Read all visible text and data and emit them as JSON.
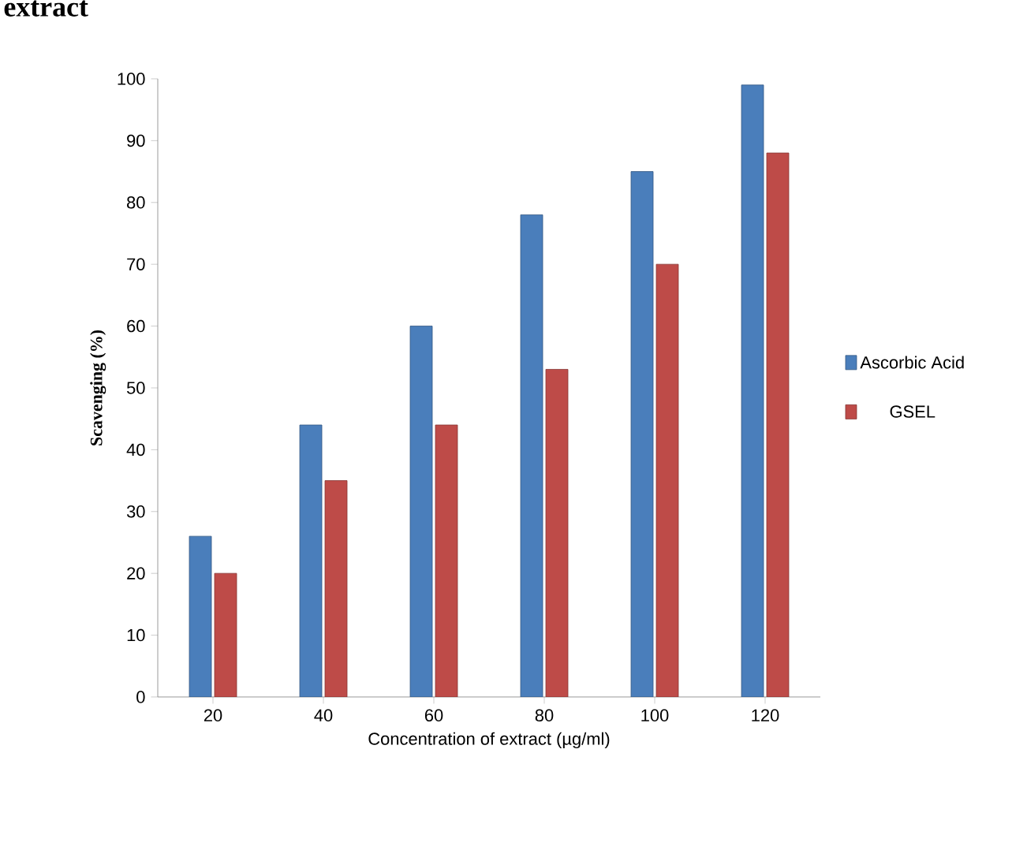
{
  "chart_data": {
    "type": "bar",
    "xlabel": "Concentration of extract (µg/ml)",
    "ylabel": "Scavenging  (%)",
    "annotations": [
      "extract"
    ],
    "categories": [
      "20",
      "40",
      "60",
      "80",
      "100",
      "120"
    ],
    "series": [
      {
        "name": "Ascorbic Acid",
        "color": "#4a7ebb",
        "values": [
          26,
          44,
          60,
          78,
          85,
          99
        ]
      },
      {
        "name": "GSEL",
        "color": "#be4b48",
        "values": [
          20,
          35,
          44,
          53,
          70,
          88
        ]
      }
    ],
    "ylim": [
      0,
      100
    ],
    "yticks": [
      0,
      10,
      20,
      30,
      40,
      50,
      60,
      70,
      80,
      90,
      100
    ],
    "legend": "right"
  }
}
